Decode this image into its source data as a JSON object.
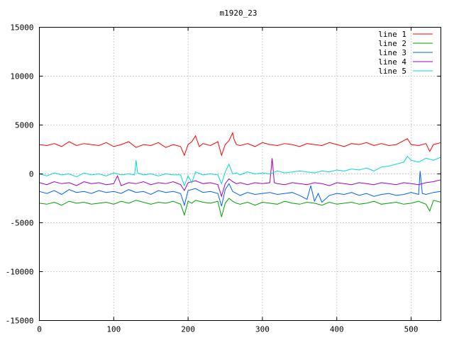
{
  "chart_data": {
    "type": "line",
    "title": "m1920_23",
    "xlabel": "",
    "ylabel": "",
    "xlim": [
      0,
      540
    ],
    "ylim": [
      -15000,
      15000
    ],
    "x_ticks": [
      0,
      100,
      200,
      300,
      400,
      500
    ],
    "y_ticks": [
      -15000,
      -10000,
      -5000,
      0,
      5000,
      10000,
      15000
    ],
    "grid": true,
    "legend_position": "top-right",
    "series": [
      {
        "name": "line 1",
        "color": "#ff0000",
        "x": [
          0,
          10,
          20,
          30,
          40,
          50,
          60,
          70,
          80,
          90,
          100,
          110,
          120,
          130,
          140,
          150,
          160,
          170,
          180,
          190,
          195,
          200,
          205,
          210,
          215,
          220,
          230,
          240,
          245,
          250,
          255,
          260,
          262,
          265,
          270,
          280,
          290,
          300,
          310,
          320,
          330,
          340,
          350,
          360,
          370,
          380,
          390,
          400,
          410,
          420,
          430,
          440,
          450,
          460,
          470,
          480,
          490,
          495,
          500,
          510,
          520,
          525,
          530,
          540
        ],
        "values": [
          3000,
          2900,
          3100,
          2800,
          3300,
          2900,
          3100,
          3000,
          2900,
          3200,
          2800,
          3000,
          3300,
          2700,
          3000,
          2900,
          3200,
          2700,
          3000,
          2800,
          1900,
          3000,
          3300,
          3900,
          2800,
          3100,
          2900,
          3300,
          1900,
          3000,
          3400,
          4200,
          3500,
          3000,
          2900,
          3100,
          2800,
          3200,
          3000,
          2900,
          3100,
          3000,
          2800,
          3100,
          3000,
          2900,
          3200,
          3000,
          2800,
          3100,
          3000,
          3200,
          2900,
          3100,
          2900,
          3000,
          3400,
          3600,
          3000,
          2900,
          3100,
          2300,
          3000,
          3200
        ]
      },
      {
        "name": "line 2",
        "color": "#00a000",
        "x": [
          0,
          10,
          20,
          30,
          40,
          50,
          60,
          70,
          80,
          90,
          100,
          110,
          120,
          130,
          140,
          150,
          160,
          170,
          180,
          190,
          195,
          200,
          205,
          210,
          220,
          230,
          240,
          245,
          250,
          255,
          260,
          265,
          270,
          280,
          290,
          300,
          310,
          320,
          330,
          340,
          350,
          360,
          370,
          380,
          390,
          400,
          410,
          420,
          430,
          440,
          450,
          460,
          470,
          480,
          490,
          500,
          510,
          520,
          525,
          530,
          540
        ],
        "values": [
          -3000,
          -3100,
          -2900,
          -3200,
          -2800,
          -3000,
          -2900,
          -3100,
          -3000,
          -2900,
          -3100,
          -2800,
          -3000,
          -2700,
          -2900,
          -3100,
          -2900,
          -3000,
          -2800,
          -3100,
          -4200,
          -2800,
          -3000,
          -2700,
          -2900,
          -3000,
          -2800,
          -4400,
          -3000,
          -2500,
          -2800,
          -3000,
          -3100,
          -2900,
          -3200,
          -2900,
          -3000,
          -3100,
          -2800,
          -3000,
          -3100,
          -2900,
          -3000,
          -3200,
          -2900,
          -3100,
          -3000,
          -2900,
          -3100,
          -3000,
          -2800,
          -3100,
          -3000,
          -2900,
          -3100,
          -3000,
          -2800,
          -3100,
          -3800,
          -2700,
          -2900
        ]
      },
      {
        "name": "line 3",
        "color": "#0060ff",
        "x": [
          0,
          10,
          20,
          30,
          40,
          50,
          60,
          70,
          80,
          90,
          100,
          110,
          120,
          130,
          140,
          150,
          160,
          170,
          180,
          190,
          195,
          200,
          210,
          220,
          230,
          240,
          245,
          250,
          255,
          260,
          265,
          270,
          280,
          290,
          300,
          310,
          320,
          330,
          340,
          350,
          360,
          365,
          370,
          375,
          380,
          390,
          400,
          410,
          420,
          430,
          440,
          450,
          460,
          470,
          480,
          490,
          500,
          505,
          510,
          512,
          515,
          520,
          530,
          540
        ],
        "values": [
          -1800,
          -2000,
          -1700,
          -2100,
          -1600,
          -1900,
          -1800,
          -2000,
          -1700,
          -1900,
          -1800,
          -2000,
          -1600,
          -1900,
          -1800,
          -2100,
          -1700,
          -1900,
          -1800,
          -2000,
          -3200,
          -1700,
          -1500,
          -1900,
          -1800,
          -2000,
          -3300,
          -1600,
          -1000,
          -1800,
          -2000,
          -2200,
          -1900,
          -2100,
          -2000,
          -1900,
          -2100,
          -2000,
          -1900,
          -2200,
          -2600,
          -1200,
          -2800,
          -2000,
          -2900,
          -2200,
          -2000,
          -2100,
          -1900,
          -2200,
          -2000,
          -2300,
          -2100,
          -2000,
          -2200,
          -2100,
          -1900,
          -2000,
          -2100,
          300,
          -2000,
          -2100,
          -1900,
          -1800
        ]
      },
      {
        "name": "line 4",
        "color": "#a000c0",
        "x": [
          0,
          10,
          20,
          30,
          40,
          50,
          60,
          70,
          80,
          90,
          100,
          105,
          110,
          120,
          130,
          140,
          150,
          160,
          170,
          180,
          190,
          195,
          200,
          210,
          220,
          230,
          240,
          245,
          250,
          255,
          260,
          265,
          270,
          280,
          290,
          300,
          310,
          313,
          316,
          320,
          330,
          340,
          350,
          360,
          370,
          380,
          390,
          400,
          410,
          420,
          430,
          440,
          450,
          460,
          470,
          480,
          490,
          500,
          510,
          520,
          530,
          540
        ],
        "values": [
          -900,
          -1100,
          -800,
          -1000,
          -900,
          -1200,
          -800,
          -1000,
          -900,
          -1100,
          -1000,
          -200,
          -1200,
          -900,
          -1000,
          -800,
          -1100,
          -900,
          -1000,
          -800,
          -1100,
          -1700,
          -900,
          -700,
          -1000,
          -900,
          -1100,
          -2300,
          -1000,
          -500,
          -800,
          -1000,
          -900,
          -1100,
          -900,
          -1000,
          -900,
          1600,
          -900,
          -1000,
          -1100,
          -900,
          -1000,
          -1100,
          -900,
          -1000,
          -1200,
          -900,
          -1000,
          -1100,
          -900,
          -1000,
          -1100,
          -900,
          -1000,
          -1100,
          -900,
          -1000,
          -1100,
          -900,
          -800,
          -600
        ]
      },
      {
        "name": "line 5",
        "color": "#00d8d8",
        "x": [
          0,
          10,
          20,
          30,
          40,
          50,
          60,
          70,
          80,
          90,
          100,
          110,
          120,
          128,
          130,
          132,
          140,
          150,
          160,
          170,
          180,
          190,
          195,
          200,
          205,
          210,
          220,
          230,
          240,
          245,
          250,
          255,
          260,
          265,
          270,
          280,
          290,
          300,
          310,
          320,
          330,
          340,
          350,
          360,
          370,
          380,
          390,
          400,
          410,
          420,
          430,
          440,
          450,
          460,
          470,
          480,
          490,
          495,
          500,
          510,
          520,
          530,
          540
        ],
        "values": [
          0,
          -200,
          100,
          -100,
          0,
          -300,
          100,
          -100,
          0,
          -200,
          100,
          -100,
          0,
          -100,
          1400,
          100,
          -100,
          0,
          -200,
          0,
          -100,
          -100,
          -1200,
          -200,
          -900,
          200,
          -100,
          0,
          -100,
          -1000,
          200,
          1000,
          0,
          100,
          -100,
          200,
          0,
          100,
          0,
          300,
          100,
          200,
          300,
          200,
          100,
          300,
          200,
          400,
          300,
          500,
          400,
          600,
          300,
          700,
          800,
          1000,
          1200,
          1800,
          1400,
          1200,
          1600,
          1400,
          1700
        ]
      }
    ]
  }
}
